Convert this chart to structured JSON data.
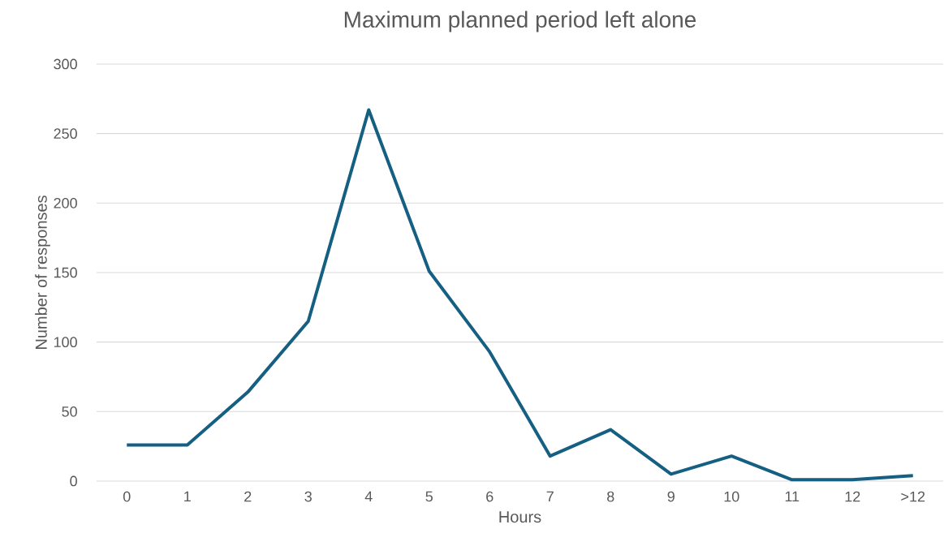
{
  "chart_data": {
    "type": "line",
    "title": "Maximum planned period left alone",
    "xlabel": "Hours",
    "ylabel": "Number of responses",
    "categories": [
      "0",
      "1",
      "2",
      "3",
      "4",
      "5",
      "6",
      "7",
      "8",
      "9",
      "10",
      "11",
      "12",
      ">12"
    ],
    "series": [
      {
        "color": "#156082",
        "values": [
          26,
          26,
          64,
          115,
          267,
          151,
          93,
          18,
          37,
          5,
          18,
          1,
          1,
          4
        ]
      }
    ],
    "ylim": [
      0,
      300
    ],
    "yticks": [
      0,
      50,
      100,
      150,
      200,
      250,
      300
    ],
    "grid": "y",
    "marker": "none",
    "line_style": "solid"
  }
}
